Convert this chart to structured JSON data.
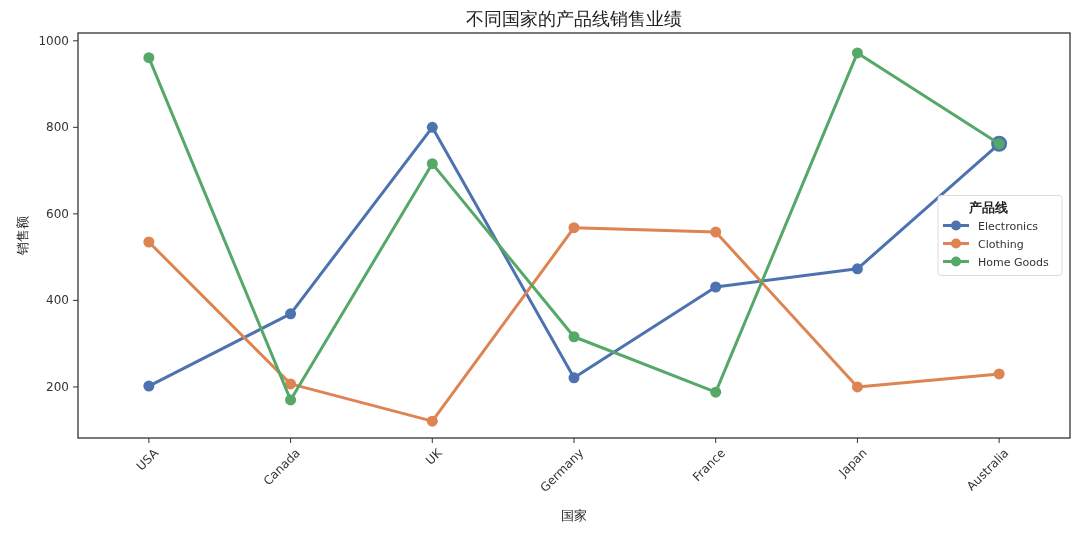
{
  "chart_data": {
    "type": "line",
    "title": "不同国家的产品线销售业绩",
    "xlabel": "国家",
    "ylabel": "销售额",
    "legend_title": "产品线",
    "categories": [
      "USA",
      "Canada",
      "UK",
      "Germany",
      "France",
      "Japan",
      "Australia"
    ],
    "series": [
      {
        "name": "Electronics",
        "color": "#4c72b0",
        "values": [
          202,
          369,
          800,
          221,
          431,
          473,
          762
        ]
      },
      {
        "name": "Clothing",
        "color": "#dd8452",
        "values": [
          535,
          207,
          121,
          568,
          558,
          200,
          230
        ]
      },
      {
        "name": "Home Goods",
        "color": "#55a868",
        "values": [
          961,
          170,
          716,
          316,
          188,
          972,
          762
        ]
      }
    ],
    "ylim": [
      82,
      1018
    ],
    "yticks": [
      200,
      400,
      600,
      800,
      1000
    ],
    "grid": false,
    "legend": "right",
    "marker": "circle",
    "line_style": "solid"
  }
}
